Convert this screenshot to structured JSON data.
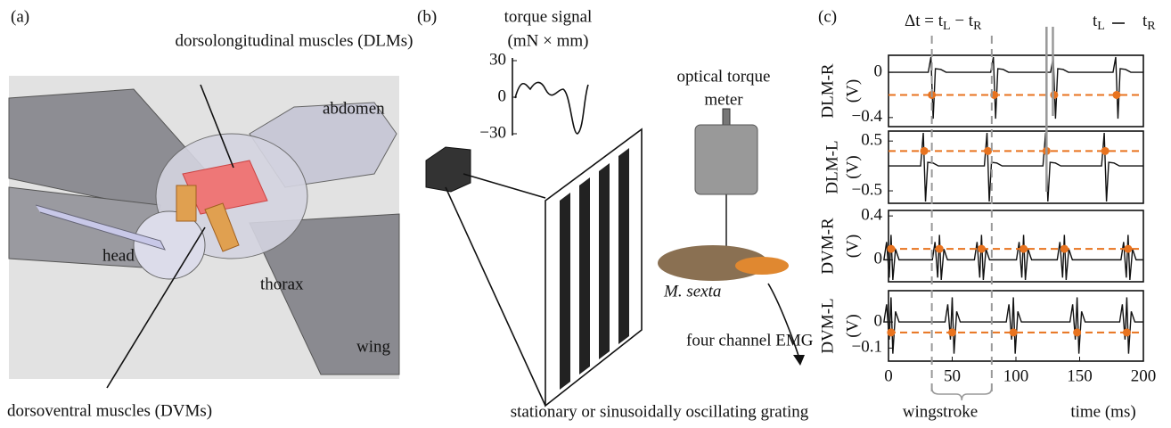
{
  "panel_a": {
    "label": "(a)",
    "dlm": "dorsolongitudinal muscles (DLMs)",
    "abdomen": "abdomen",
    "head": "head",
    "thorax": "thorax",
    "wing": "wing",
    "dvm": "dorsoventral muscles (DVMs)"
  },
  "panel_b": {
    "label": "(b)",
    "torque_title": "torque signal",
    "torque_unit": "(mN × mm)",
    "torque_ylim": [
      -30,
      30
    ],
    "torque_yticks": [
      30,
      0,
      {
        "value": -30,
        "label": "−30"
      }
    ],
    "meter_line1": "optical torque",
    "meter_line2": "meter",
    "species": "M. sexta",
    "emg": "four channel EMG",
    "caption": "stationary or sinusoidally oscillating grating"
  },
  "panel_c": {
    "label": "(c)",
    "delta_main": "Δt = t",
    "delta_sub1": "L",
    "delta_mid": " − t",
    "delta_sub2": "R",
    "gap_t1": "t",
    "gap_sub1": "L",
    "gap_t2": "t",
    "gap_sub2": "R",
    "xlim": [
      0,
      200
    ],
    "xticks": [
      0,
      50,
      100,
      150,
      200
    ],
    "xlabel": "time (ms)",
    "brace_label": "wingstroke",
    "stroke_window": [
      34,
      81
    ],
    "arrow_times": [
      124,
      129
    ],
    "channels": [
      {
        "name": "DLM-R",
        "unit": "(V)",
        "ylim": [
          -0.48,
          0.15
        ],
        "yticks": [
          0,
          {
            "value": -0.4,
            "label": "−0.4"
          }
        ],
        "threshold": -0.2,
        "spikes": [
          34,
          83,
          130,
          179
        ]
      },
      {
        "name": "DLM-L",
        "unit": "(V)",
        "ylim": [
          -0.75,
          0.7
        ],
        "yticks": [
          0.5,
          {
            "value": -0.5,
            "label": "−0.5"
          }
        ],
        "threshold": 0.3,
        "spikes": [
          28,
          78,
          124,
          170
        ]
      },
      {
        "name": "DVM-R",
        "unit": "(V)",
        "ylim": [
          -0.2,
          0.45
        ],
        "yticks": [
          0.4,
          0
        ],
        "threshold": 0.1,
        "spikes": [
          2,
          40,
          73,
          106,
          138,
          188
        ]
      },
      {
        "name": "DVM-L",
        "unit": "(V)",
        "ylim": [
          -0.15,
          0.12
        ],
        "yticks": [
          0,
          {
            "value": -0.1,
            "label": "−0.1"
          }
        ],
        "threshold": -0.04,
        "spikes": [
          2,
          50,
          98,
          148,
          187
        ]
      }
    ]
  }
}
